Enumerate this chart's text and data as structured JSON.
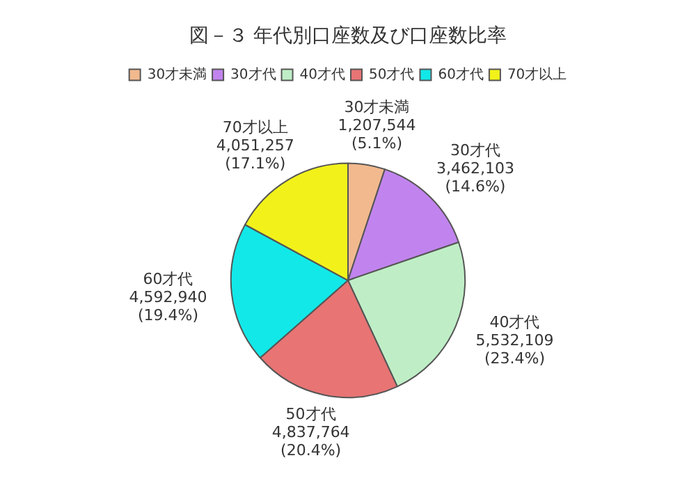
{
  "chart_data": {
    "type": "pie",
    "title": "図－３ 年代別口座数及び口座数比率",
    "categories": [
      "30才未満",
      "30才代",
      "40才代",
      "50才代",
      "60才代",
      "70才以上"
    ],
    "values": [
      1207544,
      3462103,
      5532109,
      4837764,
      4592940,
      4051257
    ],
    "value_labels": [
      "1,207,544\n(5.1%)",
      "3,462,103\n(14.6%)",
      "5,532,109\n(23.4%)",
      "4,837,764\n(20.4%)",
      "4,592,940\n(19.4%)",
      "4,051,257\n(17.1%)"
    ],
    "colors": [
      "#f2b98e",
      "#c184ee",
      "#bfeec6",
      "#e87474",
      "#12e8e8",
      "#f2f21a"
    ],
    "legend": "top"
  }
}
